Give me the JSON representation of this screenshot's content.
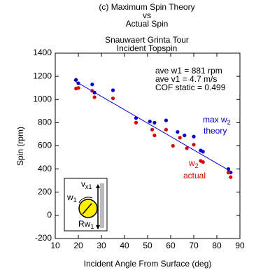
{
  "chart_data": {
    "type": "scatter",
    "title": [
      "(c) Maximum Spin Theory",
      "vs",
      "Actual Spin"
    ],
    "subtitle": [
      "Snauwaert Grinta Tour",
      "Incident Topspin"
    ],
    "xlabel": "Incident Angle From Surface (deg)",
    "ylabel": "Spin (rpm)",
    "xlim": [
      10,
      90
    ],
    "xticks": [
      10,
      20,
      30,
      40,
      50,
      60,
      70,
      80,
      90
    ],
    "ylim": [
      -200,
      1400
    ],
    "yticks": [
      -200,
      0,
      200,
      400,
      600,
      800,
      1000,
      1200,
      1400
    ],
    "series": [
      {
        "color": "#0000cc",
        "x": [
          19,
          20,
          26,
          27,
          35,
          45,
          51,
          53,
          58,
          63,
          66,
          70,
          73,
          74,
          85,
          86
        ],
        "values": [
          1170,
          1140,
          1130,
          1060,
          1080,
          840,
          810,
          800,
          820,
          720,
          690,
          680,
          560,
          550,
          400,
          370
        ]
      },
      {
        "color": "#dd0000",
        "x": [
          19,
          20,
          26,
          27,
          35,
          45,
          52,
          53,
          58,
          61,
          64,
          67,
          70,
          73,
          74,
          85,
          86
        ],
        "values": [
          1095,
          1100,
          1075,
          1020,
          1010,
          800,
          740,
          690,
          740,
          600,
          670,
          580,
          610,
          470,
          460,
          370,
          330
        ]
      },
      {
        "color": "#0000cc",
        "line": true,
        "x": [
          18,
          86
        ],
        "values": [
          1165,
          380
        ]
      }
    ],
    "annotations": [
      "ave w1 = 881 rpm",
      "ave v1 = 4.7 m/s",
      "COF static = 0.499"
    ],
    "theory_label": {
      "text": "max w",
      "sub": "2",
      "line2": "theory",
      "color": "#0000cc"
    },
    "actual_label": {
      "text": "w",
      "sub": "2",
      "line2": "actual",
      "color": "#dd0000"
    },
    "inset": {
      "v": "v",
      "v_sub": "x1",
      "w": "w",
      "w_sub": "1",
      "rw": "Rw",
      "rw_sub": "1"
    }
  }
}
